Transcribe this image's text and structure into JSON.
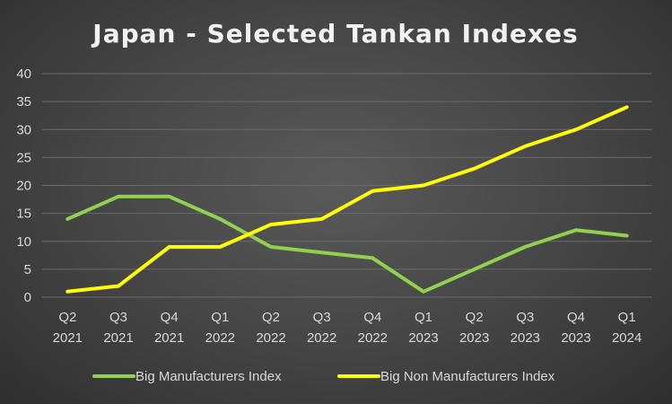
{
  "chart_data": {
    "type": "line",
    "title": "Japan - Selected Tankan Indexes",
    "xlabel": "",
    "ylabel": "",
    "ylim": [
      0,
      40
    ],
    "yticks": [
      0,
      5,
      10,
      15,
      20,
      25,
      30,
      35,
      40
    ],
    "grid": true,
    "legend_position": "bottom",
    "categories": [
      [
        "Q2",
        "2021"
      ],
      [
        "Q3",
        "2021"
      ],
      [
        "Q4",
        "2021"
      ],
      [
        "Q1",
        "2022"
      ],
      [
        "Q2",
        "2022"
      ],
      [
        "Q3",
        "2022"
      ],
      [
        "Q4",
        "2022"
      ],
      [
        "Q1",
        "2023"
      ],
      [
        "Q2",
        "2023"
      ],
      [
        "Q3",
        "2023"
      ],
      [
        "Q4",
        "2023"
      ],
      [
        "Q1",
        "2024"
      ]
    ],
    "series": [
      {
        "name": "Big Manufacturers Index",
        "color": "#92d050",
        "values": [
          14,
          18,
          18,
          14,
          9,
          8,
          7,
          1,
          5,
          9,
          12,
          11
        ]
      },
      {
        "name": "Big Non Manufacturers Index",
        "color": "#ffff00",
        "values": [
          1,
          2,
          9,
          9,
          13,
          14,
          19,
          20,
          23,
          27,
          30,
          34
        ]
      }
    ]
  }
}
